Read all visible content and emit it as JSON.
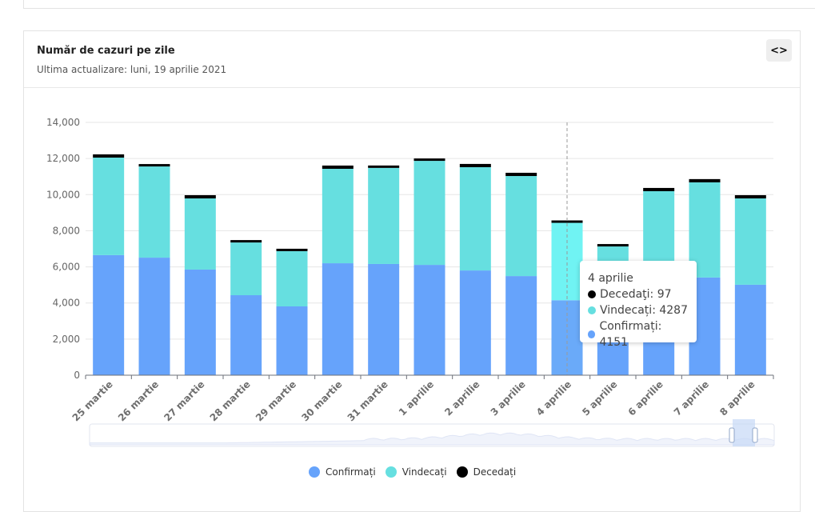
{
  "card": {
    "title": "Număr de cazuri pe zile",
    "subtitle": "Ultima actualizare: luni, 19 aprilie 2021",
    "embed_button_icon": "code-icon",
    "embed_button_glyph": "<>"
  },
  "colors": {
    "confirmati": "#66a3fb",
    "vindecati": "#66dfe0",
    "decedati": "#000000",
    "highlight_vindecati": "#70f3f3",
    "highlight_confirmati": "#6aaaf9",
    "grid": "#e6e6e6",
    "axis_text": "#666666"
  },
  "tooltip": {
    "title": "4 aprilie",
    "rows": [
      {
        "label": "Decedaţi: 97",
        "color": "#000000"
      },
      {
        "label": "Vindecați: 4287",
        "color": "#66dfe0"
      },
      {
        "label": "Confirmați: 4151",
        "color": "#66a3fb"
      }
    ]
  },
  "legend": [
    {
      "label": "Confirmați",
      "color": "#66a3fb"
    },
    {
      "label": "Vindecați",
      "color": "#66dfe0"
    },
    {
      "label": "Decedați",
      "color": "#000000"
    }
  ],
  "chart_data": {
    "type": "bar",
    "stacked": true,
    "title": "Număr de cazuri pe zile",
    "xlabel": "",
    "ylabel": "",
    "ylim": [
      0,
      14000
    ],
    "yticks": [
      0,
      2000,
      4000,
      6000,
      8000,
      10000,
      12000,
      14000
    ],
    "ytick_labels": [
      "0",
      "2,000",
      "4,000",
      "6,000",
      "8,000",
      "10,000",
      "12,000",
      "14,000"
    ],
    "grid": true,
    "legend_position": "bottom",
    "highlighted_category": "4 aprilie",
    "categories": [
      "25 martie",
      "26 martie",
      "27 martie",
      "28 martie",
      "29 martie",
      "30 martie",
      "31 martie",
      "1 aprilie",
      "2 aprilie",
      "3 aprilie",
      "4 aprilie",
      "5 aprilie",
      "6 aprilie",
      "7 aprilie",
      "8 aprilie"
    ],
    "series": [
      {
        "name": "Confirmați",
        "values": [
          6650,
          6510,
          5850,
          4430,
          3810,
          6200,
          6160,
          6110,
          5800,
          5490,
          4151,
          3400,
          4900,
          5410,
          5010
        ]
      },
      {
        "name": "Vindecați",
        "values": [
          5400,
          5050,
          3940,
          2920,
          3060,
          5230,
          5320,
          5760,
          5720,
          5540,
          4287,
          3730,
          5290,
          5270,
          4780
        ]
      },
      {
        "name": "Decedați",
        "values": [
          180,
          130,
          180,
          130,
          130,
          180,
          130,
          130,
          180,
          180,
          97,
          130,
          180,
          180,
          180
        ]
      }
    ]
  }
}
